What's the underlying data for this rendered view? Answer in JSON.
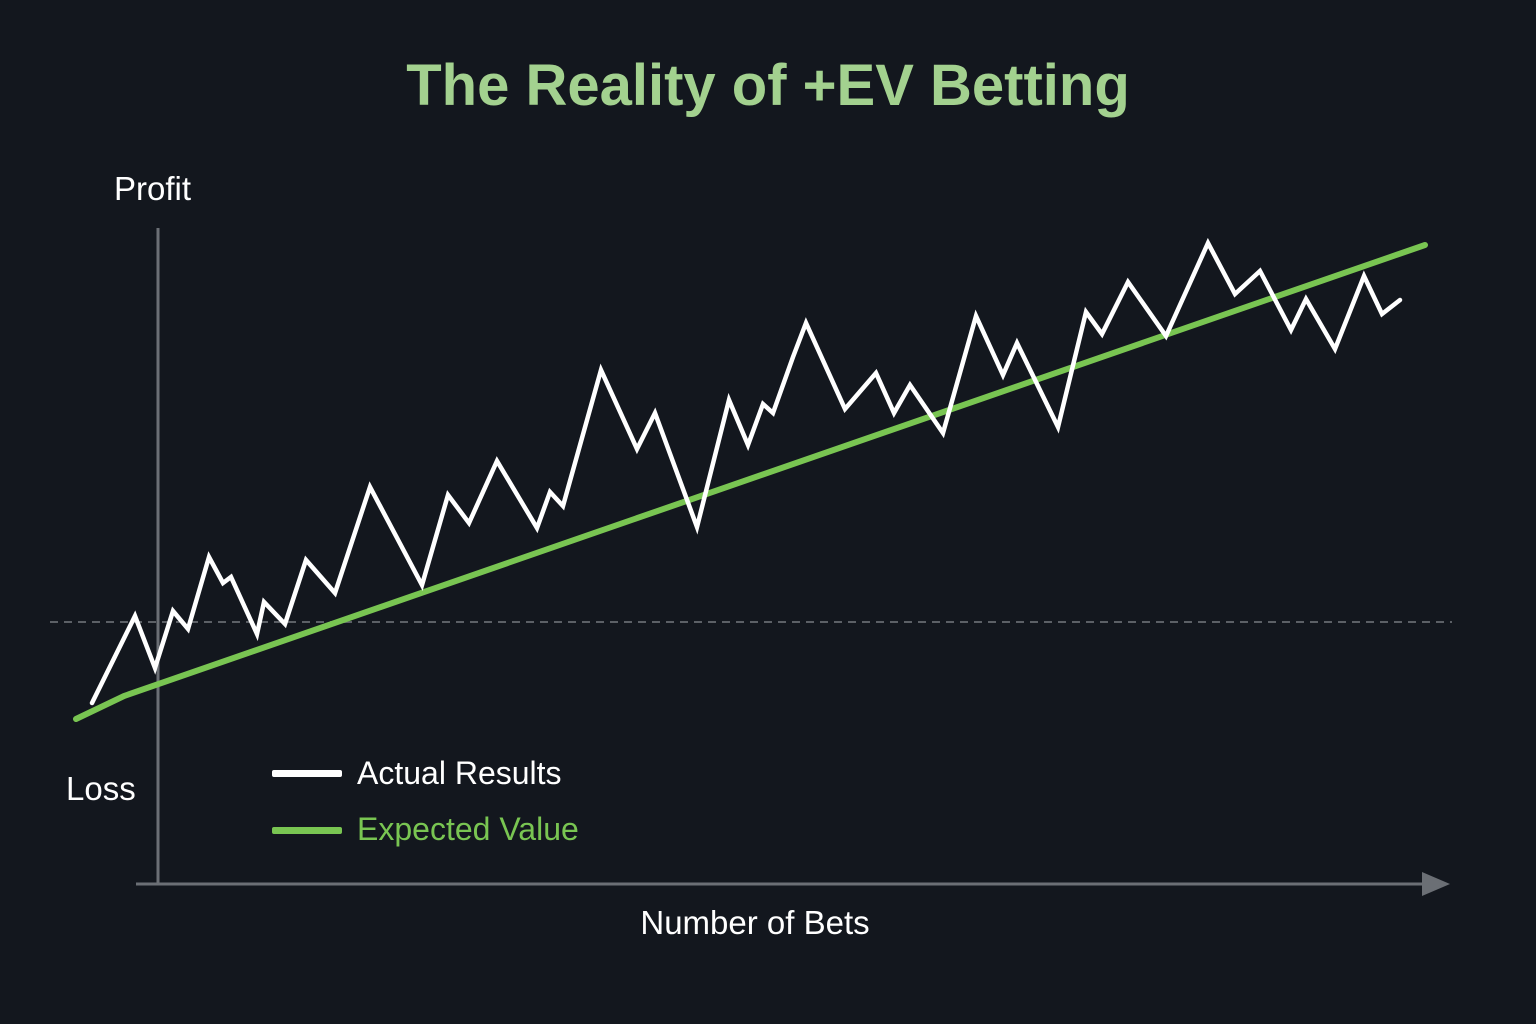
{
  "chart_data": {
    "type": "line",
    "title": "The Reality of +EV Betting",
    "xlabel": "Number of Bets",
    "ylabel_top": "Profit",
    "ylabel_bottom": "Loss",
    "grid": false,
    "baseline": {
      "y": 0,
      "style": "dashed"
    },
    "legend_placement": "bottom-left",
    "series": [
      {
        "name": "Actual Results",
        "color": "#ffffff",
        "points": [
          [
            -6.6,
            -8.1
          ],
          [
            -2.3,
            0.6
          ],
          [
            -0.3,
            -4.6
          ],
          [
            1.5,
            1.1
          ],
          [
            3.0,
            -0.7
          ],
          [
            5.1,
            6.5
          ],
          [
            6.5,
            3.9
          ],
          [
            7.3,
            4.5
          ],
          [
            9.9,
            -1.2
          ],
          [
            10.6,
            2.0
          ],
          [
            12.7,
            -0.2
          ],
          [
            14.8,
            6.2
          ],
          [
            17.7,
            2.9
          ],
          [
            21.2,
            13.5
          ],
          [
            26.4,
            3.7
          ],
          [
            29.0,
            12.7
          ],
          [
            31.1,
            9.9
          ],
          [
            33.9,
            16.1
          ],
          [
            37.9,
            9.4
          ],
          [
            39.2,
            13.0
          ],
          [
            40.5,
            11.6
          ],
          [
            44.3,
            25.2
          ],
          [
            47.9,
            17.3
          ],
          [
            49.7,
            20.9
          ],
          [
            53.9,
            9.5
          ],
          [
            57.1,
            22.2
          ],
          [
            59.0,
            17.7
          ],
          [
            60.5,
            21.8
          ],
          [
            61.5,
            20.9
          ],
          [
            63.5,
            26.5
          ],
          [
            64.8,
            29.9
          ],
          [
            68.7,
            21.3
          ],
          [
            71.8,
            24.9
          ],
          [
            73.6,
            20.9
          ],
          [
            75.2,
            23.7
          ],
          [
            78.5,
            18.9
          ],
          [
            81.8,
            30.6
          ],
          [
            84.5,
            24.7
          ],
          [
            85.9,
            27.9
          ],
          [
            90.0,
            19.5
          ],
          [
            92.8,
            31.0
          ],
          [
            94.4,
            28.8
          ],
          [
            97.0,
            34.0
          ],
          [
            100.8,
            28.6
          ],
          [
            105.0,
            37.9
          ],
          [
            107.7,
            32.8
          ],
          [
            110.2,
            35.1
          ],
          [
            113.3,
            29.2
          ],
          [
            114.8,
            32.3
          ],
          [
            117.7,
            27.3
          ],
          [
            120.6,
            34.6
          ],
          [
            122.4,
            30.8
          ],
          [
            124.2,
            32.2
          ]
        ]
      },
      {
        "name": "Expected Value",
        "color": "#79c552",
        "points": [
          [
            -8.2,
            -9.7
          ],
          [
            -3.4,
            -7.4
          ],
          [
            126.7,
            37.7
          ]
        ]
      }
    ]
  },
  "colors": {
    "background": "#13171e",
    "title": "#a3d18f",
    "axis": "#6b6f75"
  }
}
